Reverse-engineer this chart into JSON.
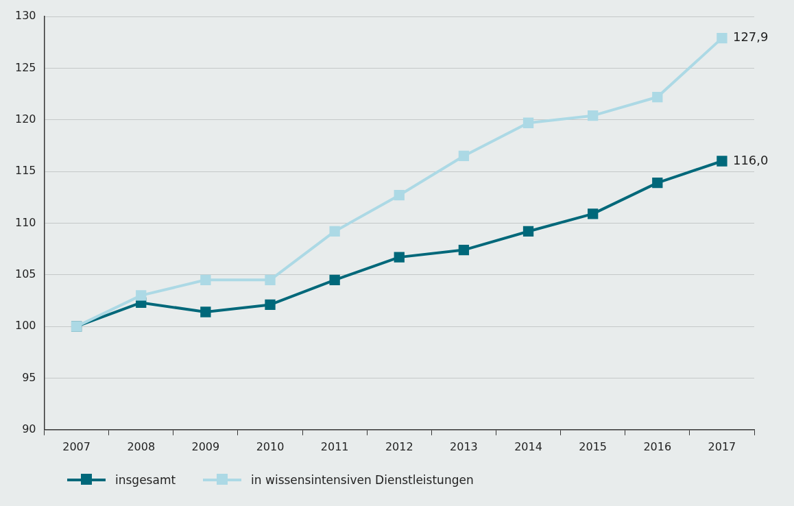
{
  "chart_data": {
    "type": "line",
    "categories": [
      "2007",
      "2008",
      "2009",
      "2010",
      "2011",
      "2012",
      "2013",
      "2014",
      "2015",
      "2016",
      "2017"
    ],
    "series": [
      {
        "name": "insgesamt",
        "color": "#00687a",
        "values": [
          100.0,
          102.3,
          101.4,
          102.1,
          104.5,
          106.7,
          107.4,
          109.2,
          110.9,
          113.9,
          116.0
        ],
        "value_labels": [
          null,
          null,
          null,
          null,
          null,
          null,
          null,
          null,
          null,
          null,
          "116,0"
        ]
      },
      {
        "name": "in wissensintensiven Dienstleistungen",
        "color": "#acd9e5",
        "values": [
          100.0,
          103.0,
          104.5,
          104.5,
          109.2,
          112.7,
          116.5,
          119.7,
          120.4,
          122.2,
          127.9
        ],
        "value_labels": [
          null,
          null,
          null,
          null,
          null,
          null,
          null,
          null,
          null,
          null,
          "127,9"
        ]
      }
    ],
    "ylim": [
      90,
      130
    ],
    "yticks": [
      90,
      95,
      100,
      105,
      110,
      115,
      120,
      125,
      130
    ],
    "grid": "y",
    "legend": "bottom left",
    "marker": "square",
    "line_style": "solid"
  }
}
